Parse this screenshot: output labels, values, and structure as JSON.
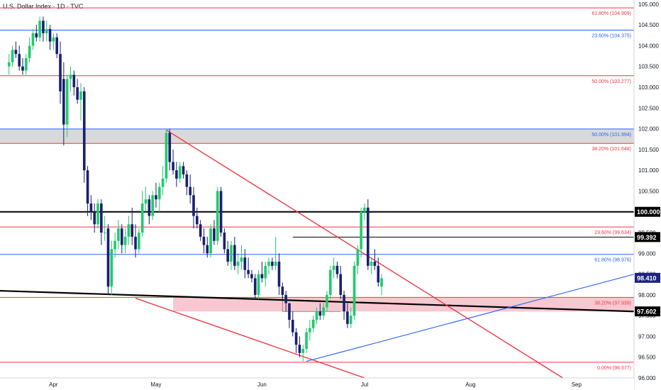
{
  "header": {
    "title": "U.S. Dollar Index · 1D · TVC"
  },
  "chart_data": {
    "type": "candlestick",
    "ylim": [
      96.0,
      105.1
    ],
    "x_tick_labels": [
      {
        "label": "Apr",
        "day": 9
      },
      {
        "label": "May",
        "day": 39
      },
      {
        "label": "Jun",
        "day": 70
      },
      {
        "label": "Jul",
        "day": 100
      },
      {
        "label": "Aug",
        "day": 131
      },
      {
        "label": "Sep",
        "day": 162
      }
    ],
    "y_ticks": [
      "96.000",
      "96.500",
      "97.000",
      "97.500",
      "98.000",
      "98.500",
      "99.000",
      "99.500",
      "100.000",
      "100.500",
      "101.000",
      "101.500",
      "102.000",
      "102.500",
      "103.000",
      "103.500",
      "104.000",
      "104.500",
      "105.000"
    ],
    "price_badges": [
      {
        "label": "100.000",
        "value": 100.0,
        "bg": "#000000",
        "fg": "#ffffff"
      },
      {
        "label": "99.392",
        "value": 99.392,
        "bg": "#000000",
        "fg": "#ffffff"
      },
      {
        "label": "98.410",
        "value": 98.41,
        "bg": "#1a237e",
        "fg": "#ffffff"
      },
      {
        "label": "97.602",
        "value": 97.602,
        "bg": "#000000",
        "fg": "#ffffff"
      }
    ],
    "fib_levels": [
      {
        "label": "61.80% (104.909)",
        "value": 104.909,
        "color": "#f23645"
      },
      {
        "label": "23.60% (104.375)",
        "value": 104.375,
        "color": "#2962ff"
      },
      {
        "label": "50.00% (103.277)",
        "value": 103.277,
        "color": "#f23645"
      },
      {
        "label": "50.00% (101.994)",
        "value": 101.994,
        "color": "#2962ff"
      },
      {
        "label": "38.20% (101.648)",
        "value": 101.648,
        "color": "#f23645"
      },
      {
        "label": "23.60% (99.634)",
        "value": 99.634,
        "color": "#f23645"
      },
      {
        "label": "61.80% (98.976)",
        "value": 98.976,
        "color": "#2962ff"
      },
      {
        "label": "38.20% (97.939)",
        "value": 97.939,
        "color": "#f23645"
      },
      {
        "label": "0.00% (96.377)",
        "value": 96.377,
        "color": "#f23645"
      }
    ],
    "zones": [
      {
        "y1": 101.65,
        "y2": 101.99,
        "color": "#d9d9d9"
      },
      {
        "d1": 44,
        "d2": 180,
        "y1": 97.6,
        "y2": 97.94,
        "color": "#f8c8d0"
      }
    ],
    "candles": [
      [
        -4,
        103.5,
        103.8,
        103.3,
        103.6
      ],
      [
        -3,
        103.6,
        104.0,
        103.5,
        103.9
      ],
      [
        -2,
        103.9,
        104.1,
        103.7,
        103.8
      ],
      [
        -1,
        103.8,
        104.0,
        103.4,
        103.5
      ],
      [
        0,
        103.5,
        103.7,
        103.3,
        103.4
      ],
      [
        1,
        103.4,
        103.8,
        103.3,
        103.7
      ],
      [
        2,
        103.7,
        104.2,
        103.6,
        104.0
      ],
      [
        3,
        104.0,
        104.4,
        103.9,
        104.3
      ],
      [
        4,
        104.3,
        104.5,
        104.1,
        104.2
      ],
      [
        5,
        104.2,
        104.7,
        104.1,
        104.6
      ],
      [
        6,
        104.6,
        104.7,
        104.1,
        104.3
      ],
      [
        7,
        104.3,
        104.6,
        104.1,
        104.4
      ],
      [
        8,
        104.4,
        104.5,
        103.9,
        104.1
      ],
      [
        9,
        104.1,
        104.3,
        103.9,
        104.2
      ],
      [
        10,
        104.2,
        104.3,
        103.7,
        103.8
      ],
      [
        11,
        103.8,
        104.1,
        102.6,
        102.9
      ],
      [
        12,
        103.2,
        103.6,
        101.6,
        102.1
      ],
      [
        13,
        102.1,
        103.3,
        101.8,
        103.2
      ],
      [
        14,
        103.2,
        103.5,
        102.9,
        103.3
      ],
      [
        15,
        103.3,
        103.4,
        102.8,
        103.0
      ],
      [
        16,
        103.0,
        103.2,
        102.6,
        102.7
      ],
      [
        17,
        102.7,
        103.1,
        102.2,
        102.9
      ],
      [
        18,
        102.9,
        103.0,
        100.7,
        101.0
      ],
      [
        19,
        101.0,
        101.1,
        99.9,
        100.2
      ],
      [
        20,
        100.2,
        100.4,
        99.8,
        100.0
      ],
      [
        21,
        100.0,
        100.2,
        99.5,
        99.7
      ],
      [
        22,
        99.7,
        100.3,
        99.6,
        100.2
      ],
      [
        23,
        100.2,
        100.3,
        99.2,
        99.5
      ],
      [
        24,
        99.5,
        99.9,
        99.3,
        99.5
      ],
      [
        25,
        99.6,
        99.7,
        98.0,
        98.2
      ],
      [
        26,
        98.2,
        99.3,
        98.0,
        99.1
      ],
      [
        27,
        99.1,
        99.5,
        98.9,
        99.3
      ],
      [
        28,
        99.3,
        99.8,
        99.1,
        99.6
      ],
      [
        29,
        99.6,
        99.7,
        99.0,
        99.2
      ],
      [
        30,
        99.2,
        99.6,
        99.0,
        99.4
      ],
      [
        31,
        99.4,
        99.9,
        99.2,
        99.7
      ],
      [
        32,
        99.7,
        100.1,
        99.2,
        99.4
      ],
      [
        33,
        99.4,
        99.7,
        98.9,
        99.1
      ],
      [
        34,
        99.1,
        99.6,
        99.0,
        99.5
      ],
      [
        35,
        99.5,
        100.5,
        99.4,
        100.2
      ],
      [
        36,
        100.2,
        100.6,
        100.0,
        100.3
      ],
      [
        37,
        100.3,
        100.4,
        99.7,
        99.9
      ],
      [
        38,
        99.9,
        100.5,
        99.8,
        100.4
      ],
      [
        39,
        100.4,
        100.7,
        100.1,
        100.3
      ],
      [
        40,
        100.3,
        100.7,
        100.0,
        100.6
      ],
      [
        41,
        100.6,
        101.1,
        100.4,
        100.8
      ],
      [
        42,
        100.8,
        102.0,
        100.7,
        101.9
      ],
      [
        43,
        101.9,
        102.0,
        101.0,
        101.2
      ],
      [
        44,
        101.2,
        101.5,
        100.9,
        101.0
      ],
      [
        45,
        101.0,
        101.2,
        100.6,
        100.8
      ],
      [
        46,
        100.8,
        101.2,
        100.7,
        101.1
      ],
      [
        47,
        101.1,
        101.2,
        100.8,
        100.9
      ],
      [
        48,
        100.9,
        101.0,
        100.4,
        100.6
      ],
      [
        49,
        100.6,
        100.9,
        100.2,
        100.4
      ],
      [
        50,
        100.4,
        100.6,
        99.6,
        99.9
      ],
      [
        51,
        99.9,
        100.1,
        99.6,
        99.7
      ],
      [
        52,
        99.7,
        99.8,
        99.3,
        99.4
      ],
      [
        53,
        99.4,
        99.6,
        99.0,
        99.2
      ],
      [
        54,
        99.2,
        99.4,
        98.9,
        99.0
      ],
      [
        55,
        99.0,
        99.7,
        98.9,
        99.6
      ],
      [
        56,
        99.6,
        99.8,
        99.2,
        99.3
      ],
      [
        57,
        99.3,
        100.6,
        99.2,
        100.5
      ],
      [
        58,
        100.5,
        100.6,
        99.4,
        99.5
      ],
      [
        59,
        99.5,
        99.6,
        99.0,
        99.1
      ],
      [
        60,
        99.1,
        99.3,
        98.7,
        98.8
      ],
      [
        61,
        98.8,
        99.3,
        98.6,
        99.2
      ],
      [
        62,
        99.2,
        99.4,
        98.6,
        98.7
      ],
      [
        63,
        98.7,
        99.0,
        98.5,
        98.8
      ],
      [
        64,
        98.8,
        99.2,
        98.6,
        98.9
      ],
      [
        65,
        98.9,
        99.1,
        98.4,
        98.6
      ],
      [
        66,
        98.6,
        98.9,
        98.4,
        98.5
      ],
      [
        67,
        98.5,
        98.6,
        98.3,
        98.4
      ],
      [
        68,
        98.4,
        98.5,
        97.9,
        98.0
      ],
      [
        69,
        98.0,
        98.6,
        97.9,
        98.5
      ],
      [
        70,
        98.5,
        98.8,
        98.3,
        98.4
      ],
      [
        71,
        98.4,
        98.8,
        98.2,
        98.7
      ],
      [
        72,
        98.7,
        98.9,
        98.5,
        98.8
      ],
      [
        73,
        98.8,
        98.9,
        98.6,
        98.7
      ],
      [
        74,
        98.7,
        99.4,
        98.6,
        98.8
      ],
      [
        75,
        98.8,
        99.0,
        98.0,
        98.2
      ],
      [
        76,
        98.2,
        98.3,
        97.9,
        98.0
      ],
      [
        77,
        98.0,
        98.1,
        97.6,
        97.8
      ],
      [
        78,
        97.8,
        97.8,
        97.2,
        97.4
      ],
      [
        79,
        97.4,
        97.6,
        97.0,
        97.1
      ],
      [
        80,
        97.1,
        97.2,
        96.6,
        96.8
      ],
      [
        81,
        96.8,
        97.0,
        96.5,
        96.6
      ],
      [
        82,
        96.6,
        96.8,
        96.4,
        96.7
      ],
      [
        83,
        96.7,
        97.2,
        96.6,
        97.1
      ],
      [
        84,
        97.1,
        97.4,
        96.9,
        97.2
      ],
      [
        85,
        97.2,
        97.5,
        97.1,
        97.4
      ],
      [
        86,
        97.4,
        97.7,
        97.3,
        97.6
      ],
      [
        87,
        97.6,
        97.8,
        97.4,
        97.5
      ],
      [
        88,
        97.5,
        97.8,
        97.4,
        97.7
      ],
      [
        89,
        97.7,
        98.1,
        97.6,
        98.0
      ],
      [
        90,
        98.0,
        98.7,
        97.9,
        98.6
      ],
      [
        91,
        98.6,
        98.9,
        98.4,
        98.7
      ],
      [
        92,
        98.7,
        98.8,
        98.4,
        98.5
      ],
      [
        93,
        98.5,
        98.7,
        97.9,
        98.0
      ],
      [
        94,
        98.0,
        98.1,
        97.4,
        97.6
      ],
      [
        95,
        97.6,
        97.8,
        97.2,
        97.3
      ],
      [
        96,
        97.3,
        97.7,
        97.2,
        97.5
      ],
      [
        97,
        97.5,
        98.8,
        97.4,
        98.7
      ],
      [
        98,
        98.7,
        99.2,
        98.5,
        99.1
      ],
      [
        99,
        99.1,
        100.1,
        98.9,
        100.0
      ],
      [
        100,
        100.0,
        100.2,
        99.8,
        100.1
      ],
      [
        101,
        100.1,
        100.3,
        98.6,
        98.7
      ],
      [
        102,
        98.7,
        98.9,
        98.5,
        98.8
      ],
      [
        103,
        98.8,
        99.1,
        98.6,
        98.7
      ],
      [
        104,
        98.7,
        98.9,
        98.2,
        98.3
      ],
      [
        105,
        98.2,
        98.5,
        98.0,
        98.4
      ]
    ]
  }
}
